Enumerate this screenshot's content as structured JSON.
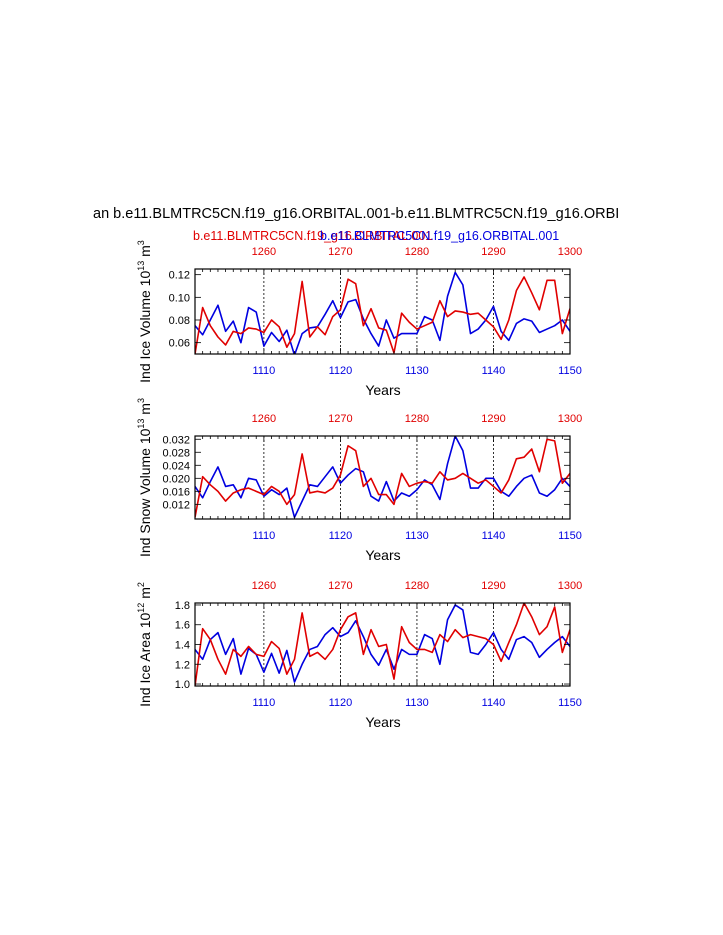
{
  "title": "an b.e11.BLMTRC5CN.f19_g16.ORBITAL.001-b.e11.BLMTRC5CN.f19_g16.ORBI",
  "subtitle_left": "b.e11.BLMTRC5CN.f19_g16.ORBITAL.001",
  "subtitle_right": "b.e11.BLMTRC5CN.f19_g16.ORBITAL.001",
  "colors": {
    "series_top": "#e00000",
    "series_bottom": "#0000e0",
    "axis": "#000000"
  },
  "chart_data": [
    {
      "type": "line",
      "ylabel_main": "Ind Ice Volume 10",
      "ylabel_exp": "13",
      "ylabel_unit": " m",
      "ylabel_unit_exp": "3",
      "xlabel": "Years",
      "xlim": [
        1101,
        1150
      ],
      "x2lim": [
        1251,
        1300
      ],
      "ylim": [
        0.05,
        0.125
      ],
      "yticks": [
        0.06,
        0.08,
        0.1,
        0.12
      ],
      "ytick_labels": [
        "0.06",
        "0.08",
        "0.10",
        "0.12"
      ],
      "xticks": [
        1110,
        1120,
        1130,
        1140,
        1150
      ],
      "xtick_labels": [
        "1110",
        "1120",
        "1130",
        "1140",
        "1150"
      ],
      "x2ticks": [
        1260,
        1270,
        1280,
        1290,
        1300
      ],
      "x2tick_labels": [
        "1260",
        "1270",
        "1280",
        "1290",
        "1300"
      ],
      "series": [
        {
          "name": "blue (years 1101-1150)",
          "color": "#0000e0",
          "axis": "bottom",
          "values": [
            0.075,
            0.067,
            0.08,
            0.093,
            0.07,
            0.079,
            0.06,
            0.091,
            0.087,
            0.057,
            0.069,
            0.061,
            0.071,
            0.049,
            0.068,
            0.073,
            0.074,
            0.085,
            0.097,
            0.082,
            0.096,
            0.098,
            0.081,
            0.068,
            0.057,
            0.08,
            0.064,
            0.068,
            0.068,
            0.068,
            0.083,
            0.08,
            0.062,
            0.101,
            0.122,
            0.111,
            0.068,
            0.072,
            0.08,
            0.092,
            0.07,
            0.062,
            0.077,
            0.081,
            0.079,
            0.069,
            0.072,
            0.075,
            0.08,
            0.07
          ]
        },
        {
          "name": "red (years 1251-1300)",
          "color": "#e00000",
          "axis": "top",
          "values": [
            0.05,
            0.091,
            0.075,
            0.065,
            0.058,
            0.07,
            0.068,
            0.073,
            0.072,
            0.069,
            0.08,
            0.074,
            0.056,
            0.068,
            0.114,
            0.065,
            0.074,
            0.067,
            0.083,
            0.089,
            0.116,
            0.112,
            0.075,
            0.09,
            0.073,
            0.071,
            0.051,
            0.086,
            0.078,
            0.072,
            0.075,
            0.078,
            0.097,
            0.083,
            0.088,
            0.087,
            0.085,
            0.086,
            0.08,
            0.074,
            0.063,
            0.08,
            0.106,
            0.118,
            0.104,
            0.089,
            0.115,
            0.115,
            0.068,
            0.09
          ]
        }
      ]
    },
    {
      "type": "line",
      "ylabel_main": "Ind Snow Volume 10",
      "ylabel_exp": "13",
      "ylabel_unit": " m",
      "ylabel_unit_exp": "3",
      "xlabel": "Years",
      "xlim": [
        1101,
        1150
      ],
      "x2lim": [
        1251,
        1300
      ],
      "ylim": [
        0.0075,
        0.033
      ],
      "yticks": [
        0.012,
        0.016,
        0.02,
        0.024,
        0.028,
        0.032
      ],
      "ytick_labels": [
        "0.012",
        "0.016",
        "0.020",
        "0.024",
        "0.028",
        "0.032"
      ],
      "xticks": [
        1110,
        1120,
        1130,
        1140,
        1150
      ],
      "xtick_labels": [
        "1110",
        "1120",
        "1130",
        "1140",
        "1150"
      ],
      "x2ticks": [
        1260,
        1270,
        1280,
        1290,
        1300
      ],
      "x2tick_labels": [
        "1260",
        "1270",
        "1280",
        "1290",
        "1300"
      ],
      "series": [
        {
          "name": "blue (years 1101-1150)",
          "color": "#0000e0",
          "axis": "bottom",
          "values": [
            0.0175,
            0.014,
            0.019,
            0.0235,
            0.0175,
            0.018,
            0.014,
            0.02,
            0.0195,
            0.0145,
            0.0165,
            0.015,
            0.017,
            0.008,
            0.013,
            0.018,
            0.0175,
            0.0205,
            0.0235,
            0.0185,
            0.021,
            0.023,
            0.022,
            0.0145,
            0.013,
            0.019,
            0.013,
            0.0155,
            0.0145,
            0.0165,
            0.0195,
            0.018,
            0.0135,
            0.0245,
            0.033,
            0.0285,
            0.017,
            0.017,
            0.02,
            0.02,
            0.016,
            0.0145,
            0.0175,
            0.02,
            0.021,
            0.0155,
            0.0145,
            0.0165,
            0.02,
            0.0175
          ]
        },
        {
          "name": "red (years 1251-1300)",
          "color": "#e00000",
          "axis": "top",
          "values": [
            0.008,
            0.0205,
            0.018,
            0.016,
            0.013,
            0.0155,
            0.0165,
            0.017,
            0.016,
            0.015,
            0.0175,
            0.016,
            0.012,
            0.015,
            0.0275,
            0.0155,
            0.016,
            0.0155,
            0.017,
            0.021,
            0.03,
            0.0285,
            0.0175,
            0.02,
            0.015,
            0.015,
            0.012,
            0.0215,
            0.0175,
            0.0185,
            0.019,
            0.0185,
            0.022,
            0.0195,
            0.02,
            0.0215,
            0.02,
            0.0185,
            0.0195,
            0.0175,
            0.0155,
            0.0195,
            0.026,
            0.0265,
            0.029,
            0.022,
            0.032,
            0.0315,
            0.0185,
            0.0215
          ]
        }
      ]
    },
    {
      "type": "line",
      "ylabel_main": "Ind Ice Area 10",
      "ylabel_exp": "12",
      "ylabel_unit": " m",
      "ylabel_unit_exp": "2",
      "xlabel": "Years",
      "xlim": [
        1101,
        1150
      ],
      "x2lim": [
        1251,
        1300
      ],
      "ylim": [
        0.98,
        1.82
      ],
      "yticks": [
        1.0,
        1.2,
        1.4,
        1.6,
        1.8
      ],
      "ytick_labels": [
        "1.0",
        "1.2",
        "1.4",
        "1.6",
        "1.8"
      ],
      "xticks": [
        1110,
        1120,
        1130,
        1140,
        1150
      ],
      "xtick_labels": [
        "1110",
        "1120",
        "1130",
        "1140",
        "1150"
      ],
      "x2ticks": [
        1260,
        1270,
        1280,
        1290,
        1300
      ],
      "x2tick_labels": [
        "1260",
        "1270",
        "1280",
        "1290",
        "1300"
      ],
      "series": [
        {
          "name": "blue (years 1101-1150)",
          "color": "#0000e0",
          "axis": "bottom",
          "values": [
            1.35,
            1.25,
            1.45,
            1.52,
            1.3,
            1.46,
            1.1,
            1.36,
            1.3,
            1.12,
            1.31,
            1.11,
            1.34,
            1.02,
            1.2,
            1.35,
            1.38,
            1.5,
            1.57,
            1.48,
            1.52,
            1.64,
            1.48,
            1.3,
            1.19,
            1.35,
            1.15,
            1.35,
            1.3,
            1.3,
            1.5,
            1.46,
            1.2,
            1.65,
            1.8,
            1.75,
            1.32,
            1.3,
            1.4,
            1.52,
            1.35,
            1.25,
            1.45,
            1.48,
            1.42,
            1.27,
            1.35,
            1.42,
            1.48,
            1.38
          ]
        },
        {
          "name": "red (years 1251-1300)",
          "color": "#e00000",
          "axis": "top",
          "values": [
            0.98,
            1.56,
            1.45,
            1.25,
            1.1,
            1.35,
            1.28,
            1.38,
            1.3,
            1.28,
            1.43,
            1.36,
            1.1,
            1.25,
            1.72,
            1.28,
            1.32,
            1.25,
            1.35,
            1.55,
            1.68,
            1.72,
            1.3,
            1.55,
            1.38,
            1.4,
            1.05,
            1.58,
            1.42,
            1.35,
            1.35,
            1.32,
            1.5,
            1.43,
            1.55,
            1.47,
            1.5,
            1.48,
            1.46,
            1.4,
            1.23,
            1.42,
            1.6,
            1.82,
            1.68,
            1.5,
            1.58,
            1.78,
            1.32,
            1.55
          ]
        }
      ]
    }
  ]
}
